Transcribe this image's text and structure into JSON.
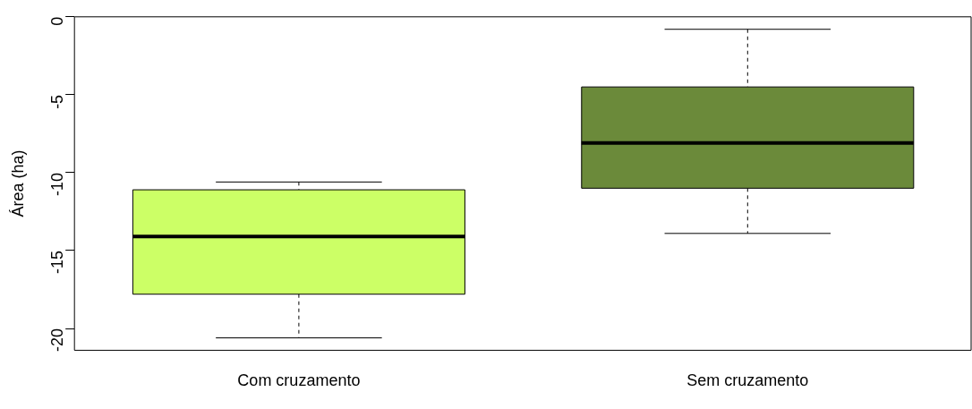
{
  "chart_data": {
    "type": "box",
    "ylabel": "Área (ha)",
    "categories": [
      "Com cruzamento",
      "Sem cruzamento"
    ],
    "series": [
      {
        "colors": [
          "#ccff66",
          "#6b8a3a"
        ],
        "boxes": [
          {
            "low": -20.6,
            "q1": -17.8,
            "median": -14.1,
            "q3": -11.1,
            "high": -10.6
          },
          {
            "low": -13.9,
            "q1": -11.0,
            "median": -8.1,
            "q3": -4.5,
            "high": -0.8
          }
        ]
      }
    ],
    "ylim": [
      -21.4,
      0
    ],
    "yticks": [
      -20,
      -15,
      -10,
      -5,
      0
    ],
    "grid": false,
    "legend": false
  }
}
